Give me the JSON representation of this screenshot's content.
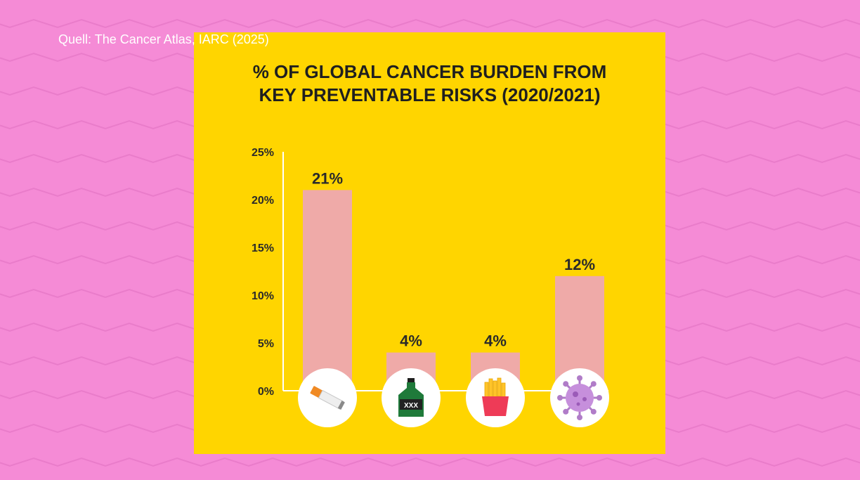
{
  "source_note": "Quell: The Cancer Atlas, IARC (2025)",
  "colors": {
    "background": "#f58bd6",
    "panel": "#ffd500",
    "bar": "#efaaa8",
    "axis": "#ffffff",
    "icon_circle": "#ffffff"
  },
  "chart_data": {
    "type": "bar",
    "title": "% OF GLOBAL CANCER BURDEN FROM\nKEY PREVENTABLE RISKS (2020/2021)",
    "xlabel": "",
    "ylabel": "",
    "ylim": [
      0,
      25
    ],
    "yticks": [
      0,
      5,
      10,
      15,
      20,
      25
    ],
    "ytick_labels": [
      "0%",
      "5%",
      "10%",
      "15%",
      "20%",
      "25%"
    ],
    "grid": false,
    "legend": "none",
    "categories": [
      "cigarette-icon",
      "liquor-bottle-icon",
      "fries-icon",
      "virus-icon"
    ],
    "values": [
      21,
      4,
      4,
      12
    ],
    "value_labels": [
      "21%",
      "4%",
      "4%",
      "12%"
    ],
    "bottle_label": "XXX"
  }
}
